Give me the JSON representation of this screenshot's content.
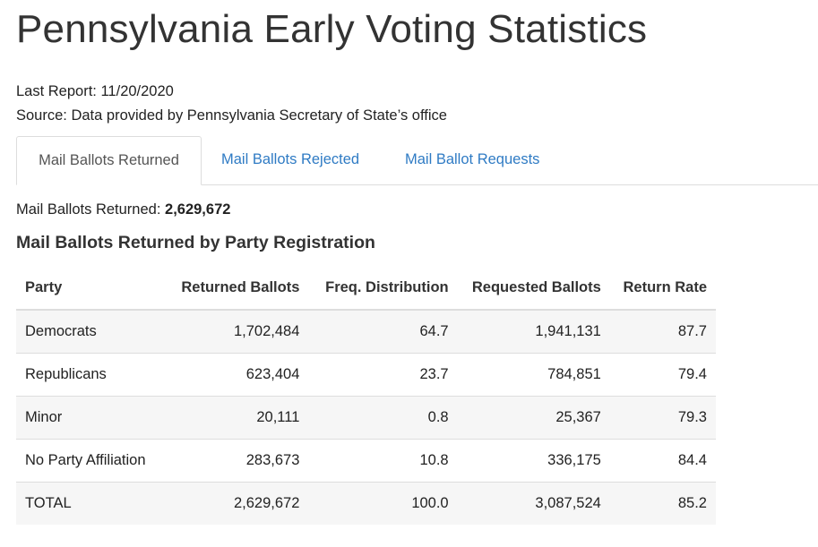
{
  "page": {
    "title": "Pennsylvania Early Voting Statistics"
  },
  "meta": {
    "last_report_label": "Last Report:",
    "last_report_value": "11/20/2020",
    "source_label": "Source:",
    "source_value": "Data provided by Pennsylvania Secretary of State’s office"
  },
  "tabs": [
    {
      "label": "Mail Ballots Returned",
      "active": true
    },
    {
      "label": "Mail Ballots Rejected",
      "active": false
    },
    {
      "label": "Mail Ballot Requests",
      "active": false
    }
  ],
  "summary": {
    "label": "Mail Ballots Returned:",
    "value": "2,629,672"
  },
  "section": {
    "title": "Mail Ballots Returned by Party Registration"
  },
  "table": {
    "headers": [
      "Party",
      "Returned Ballots",
      "Freq. Distribution",
      "Requested Ballots",
      "Return Rate"
    ],
    "rows": [
      [
        "Democrats",
        "1,702,484",
        "64.7",
        "1,941,131",
        "87.7"
      ],
      [
        "Republicans",
        "623,404",
        "23.7",
        "784,851",
        "79.4"
      ],
      [
        "Minor",
        "20,111",
        "0.8",
        "25,367",
        "79.3"
      ],
      [
        "No Party Affiliation",
        "283,673",
        "10.8",
        "336,175",
        "84.4"
      ],
      [
        "TOTAL",
        "2,629,672",
        "100.0",
        "3,087,524",
        "85.2"
      ]
    ]
  },
  "colors": {
    "link": "#2f7bc4",
    "stripe": "#f6f6f6",
    "border": "#dddddd"
  }
}
